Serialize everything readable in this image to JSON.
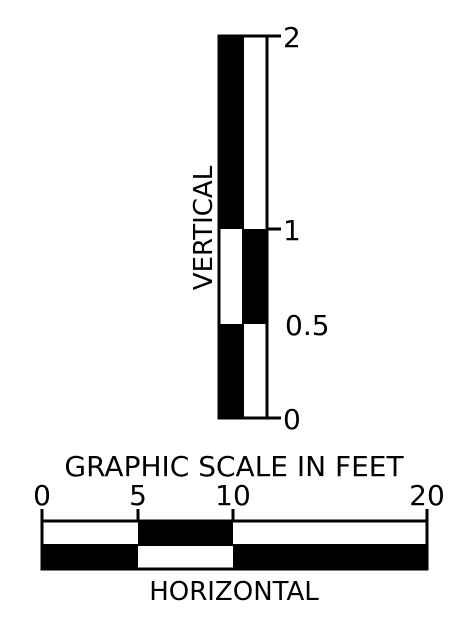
{
  "title": "GRAPHIC SCALE IN FEET",
  "vertical": {
    "label": "VERTICAL",
    "ticks": [
      "2",
      "1",
      "0.5",
      "0"
    ]
  },
  "horizontal": {
    "label": "HORIZONTAL",
    "ticks": [
      "0",
      "5",
      "10",
      "20"
    ]
  },
  "colors": {
    "ink": "#000000",
    "paper": "#ffffff"
  }
}
